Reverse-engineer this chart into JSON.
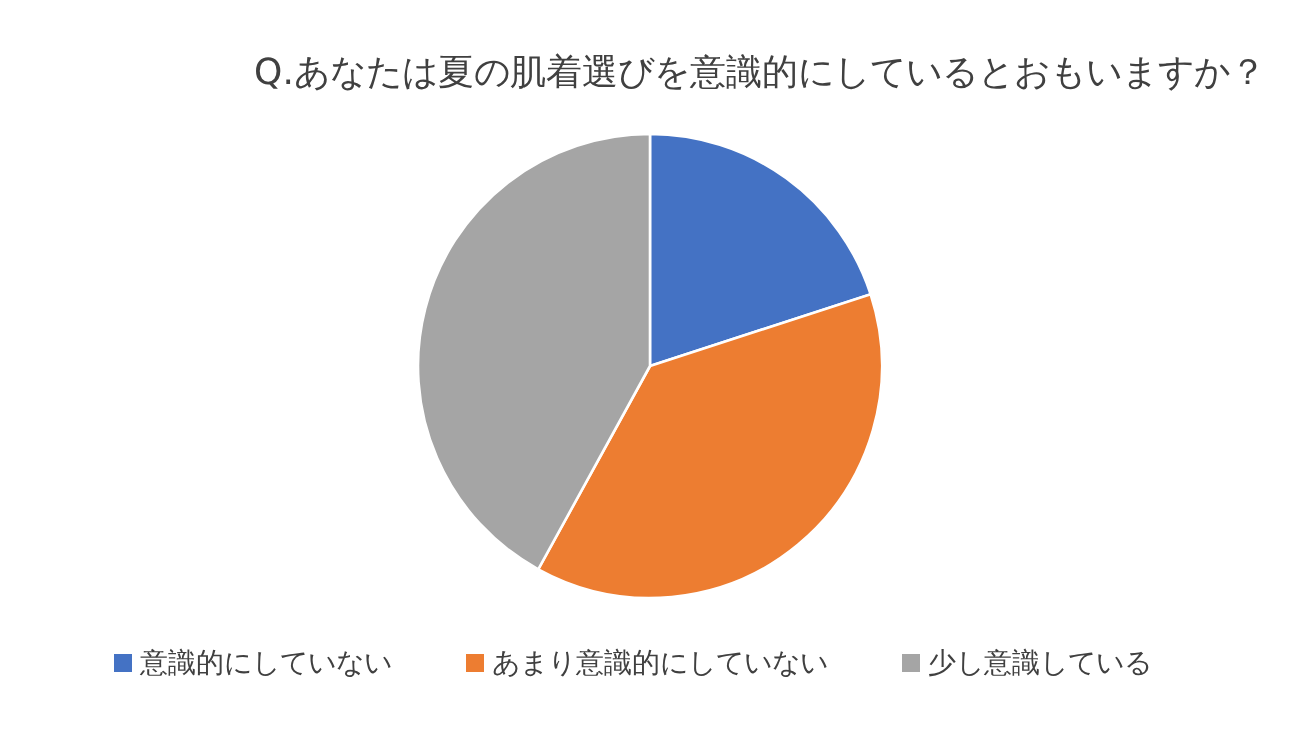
{
  "chart_data": {
    "type": "pie",
    "title": "Q.あなたは夏の肌着選びを意識的にしているとおもいますか？",
    "categories": [
      "意識的にしていない",
      "あまり意識的にしていない",
      "少し意識している"
    ],
    "values": [
      20,
      38,
      42
    ],
    "colors": [
      "#4472c4",
      "#ed7d31",
      "#a5a5a5"
    ],
    "legend": "bottom"
  }
}
